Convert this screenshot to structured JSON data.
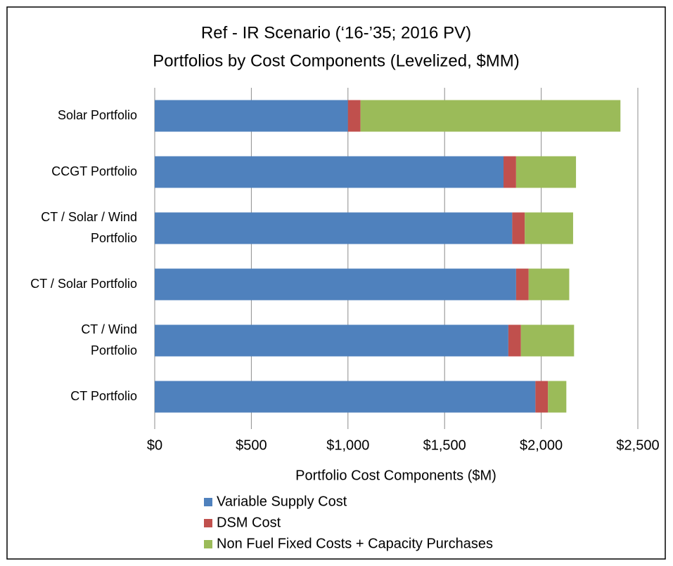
{
  "chart_data": {
    "type": "stacked-barh",
    "title": [
      "Ref - IR Scenario (‘16-’35; 2016 PV)",
      "Portfolios by Cost Components (Levelized, $MM)"
    ],
    "x_label": "Portfolio Cost Components ($M)",
    "categories": [
      "Solar Portfolio",
      "CCGT Portfolio",
      "CT / Solar / Wind\nPortfolio",
      "CT / Solar Portfolio",
      "CT / Wind\nPortfolio",
      "CT Portfolio"
    ],
    "series": [
      {
        "name": "Variable Supply Cost",
        "color": "#4f81bd",
        "values": [
          1000,
          1805,
          1850,
          1870,
          1830,
          1970
        ]
      },
      {
        "name": "DSM Cost",
        "color": "#c0504d",
        "values": [
          65,
          65,
          65,
          65,
          65,
          65
        ]
      },
      {
        "name": "Non Fuel Fixed Costs + Capacity Purchases",
        "color": "#9bbb59",
        "values": [
          1345,
          310,
          250,
          210,
          275,
          95
        ]
      }
    ],
    "xlim": [
      0,
      2500
    ],
    "xticks": [
      {
        "value": 0,
        "label": "$0"
      },
      {
        "value": 500,
        "label": "$500"
      },
      {
        "value": 1000,
        "label": "$1,000"
      },
      {
        "value": 1500,
        "label": "$1,500"
      },
      {
        "value": 2000,
        "label": "$2,000"
      },
      {
        "value": 2500,
        "label": "$2,500"
      }
    ],
    "grid": true,
    "legend": "bottom"
  }
}
